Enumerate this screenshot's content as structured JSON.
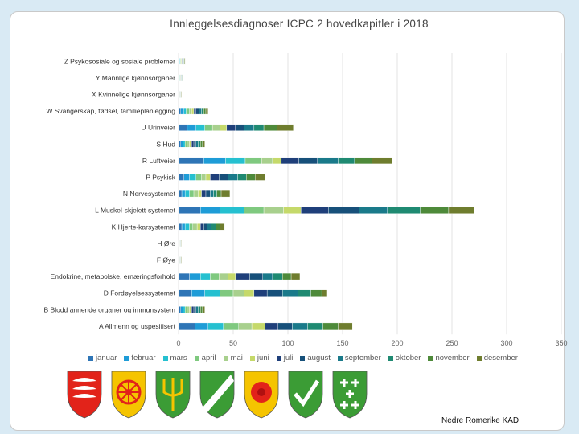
{
  "chart_data": {
    "type": "bar",
    "orientation": "horizontal",
    "stacked": true,
    "title": "Innleggelsesdiagnoser ICPC 2 hovedkapitler i 2018",
    "categories": [
      "Z Psykososiale og sosiale problemer",
      "Y Mannlige kjønnsorganer",
      "X Kvinnelige kjønnsorganer",
      "W Svangerskap, fødsel, familieplanlegging",
      "U Urinveier",
      "S Hud",
      "R Luftveier",
      "P Psykisk",
      "N Nervesystemet",
      "L Muskel-skjelett-systemet",
      "K Hjerte-karsystemet",
      "H Øre",
      "F Øye",
      "Endokrine, metabolske, ernæringsforhold",
      "D Fordøyelsessystemet",
      "B Blodd annende organer og immunsystem",
      "A Allmenn og uspesifisert"
    ],
    "series": [
      {
        "name": "januar",
        "color": "#2e75b6",
        "values": [
          0.5,
          0.4,
          0.2,
          2,
          8,
          2,
          23,
          5,
          3,
          20,
          3,
          0.3,
          0.2,
          10,
          12,
          2,
          15
        ]
      },
      {
        "name": "februar",
        "color": "#1e9cd7",
        "values": [
          0.5,
          0.4,
          0.2,
          3,
          8,
          2,
          20,
          5,
          3,
          18,
          3,
          0.2,
          0.2,
          10,
          12,
          2,
          12
        ]
      },
      {
        "name": "mars",
        "color": "#25c0d0",
        "values": [
          0.5,
          0.3,
          0.2,
          2,
          8,
          2,
          18,
          6,
          4,
          22,
          4,
          0.2,
          0.2,
          9,
          14,
          2,
          14
        ]
      },
      {
        "name": "april",
        "color": "#7fc97f",
        "values": [
          0.5,
          0.3,
          0.2,
          3,
          7,
          2,
          15,
          5,
          4,
          18,
          3,
          0.2,
          0.2,
          8,
          12,
          2,
          14
        ]
      },
      {
        "name": "mai",
        "color": "#a8d08d",
        "values": [
          0.5,
          0.4,
          0.2,
          2,
          7,
          2,
          10,
          4,
          4,
          18,
          4,
          0.2,
          0.2,
          8,
          10,
          2,
          12
        ]
      },
      {
        "name": "juni",
        "color": "#c5d96a",
        "values": [
          0.5,
          0.3,
          0.2,
          2,
          6,
          2,
          8,
          4,
          3,
          16,
          3,
          0.2,
          0.2,
          7,
          9,
          2,
          12
        ]
      },
      {
        "name": "juli",
        "color": "#1f3f7a",
        "values": [
          0.5,
          0.3,
          0.2,
          2,
          8,
          2,
          16,
          8,
          4,
          25,
          3,
          0.2,
          0.2,
          13,
          12,
          2,
          12
        ]
      },
      {
        "name": "august",
        "color": "#17507a",
        "values": [
          0.5,
          0.3,
          0.2,
          3,
          8,
          2,
          17,
          8,
          4,
          28,
          3,
          0.2,
          0.2,
          12,
          14,
          2,
          13
        ]
      },
      {
        "name": "september",
        "color": "#1a7a8a",
        "values": [
          0.5,
          0.3,
          0.2,
          2,
          9,
          2,
          19,
          9,
          3,
          26,
          4,
          0.2,
          0.2,
          9,
          14,
          2,
          14
        ]
      },
      {
        "name": "oktober",
        "color": "#1f8a72",
        "values": [
          0.5,
          0.3,
          0.2,
          2,
          9,
          2,
          15,
          8,
          3,
          30,
          4,
          0.2,
          0.2,
          9,
          12,
          2,
          14
        ]
      },
      {
        "name": "november",
        "color": "#4e8a3a",
        "values": [
          0.5,
          0.3,
          0.2,
          2,
          12,
          2,
          16,
          8,
          4,
          26,
          4,
          0.2,
          0.2,
          8,
          10,
          2,
          14
        ]
      },
      {
        "name": "desember",
        "color": "#6f7d2e",
        "values": [
          0.5,
          0.3,
          0.2,
          2,
          15,
          2,
          18,
          9,
          8,
          23,
          4,
          0.2,
          0.2,
          8,
          5,
          2,
          13
        ]
      }
    ],
    "xlim": [
      0,
      350
    ],
    "xticks": [
      0,
      50,
      100,
      150,
      200,
      250,
      300,
      350
    ],
    "gridlines": true,
    "legend_position": "bottom"
  },
  "footer": {
    "credit": "Nedre Romerike KAD"
  },
  "logos": [
    {
      "name": "coat-of-arms-red-white",
      "fg": "#ffffff",
      "bg": "#e2231a"
    },
    {
      "name": "coat-of-arms-wheel",
      "fg": "#e2231a",
      "bg": "#f5c400"
    },
    {
      "name": "coat-of-arms-trident",
      "fg": "#f5c400",
      "bg": "#3b9c35"
    },
    {
      "name": "coat-of-arms-diagonal",
      "fg": "#ffffff",
      "bg": "#3b9c35"
    },
    {
      "name": "coat-of-arms-rose",
      "fg": "#e2231a",
      "bg": "#f5c400"
    },
    {
      "name": "coat-of-arms-checkmark",
      "fg": "#ffffff",
      "bg": "#3b9c35"
    },
    {
      "name": "coat-of-arms-crosses",
      "fg": "#ffffff",
      "bg": "#3b9c35"
    }
  ]
}
